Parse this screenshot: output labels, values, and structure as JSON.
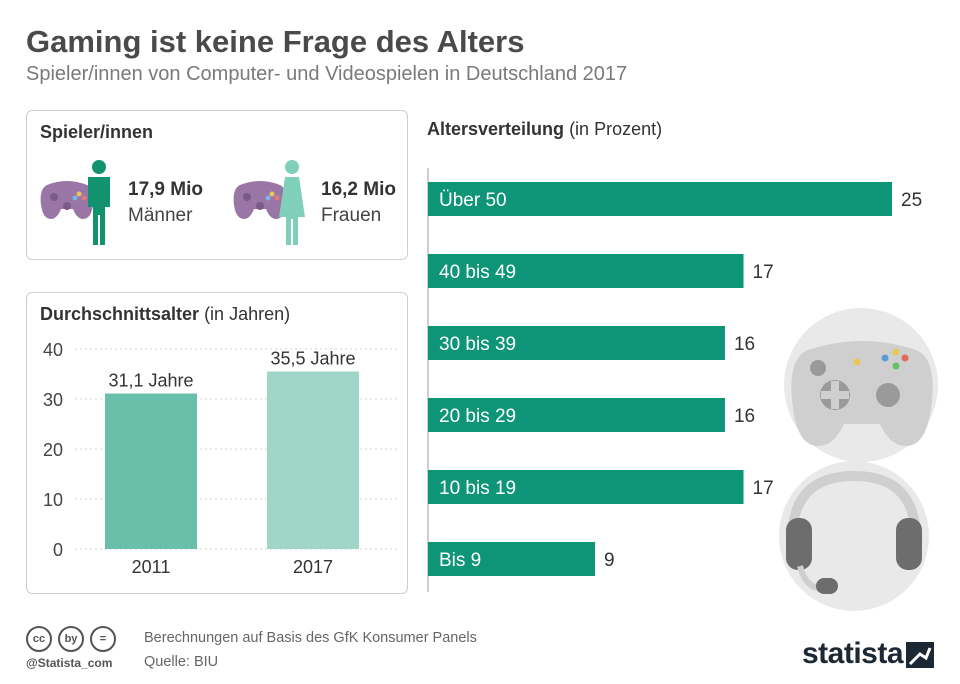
{
  "title": "Gaming ist keine Frage des Alters",
  "subtitle": "Spieler/innen von Computer- und Videospielen in Deutschland 2017",
  "players": {
    "heading": "Spieler/innen",
    "men": {
      "value": "17,9 Mio",
      "label": "Männer"
    },
    "women": {
      "value": "16,2 Mio",
      "label": "Frauen"
    }
  },
  "colors": {
    "bar_green": "#0e9577",
    "age_2011": "#6abfaa",
    "age_2017": "#9fd6c7",
    "man_icon": "#13926f",
    "woman_icon": "#7fcfbb",
    "controller_purple": "#9a76a6",
    "illustration_gray": "#e6e6e6"
  },
  "age_chart": {
    "heading": "Durchschnittsalter",
    "heading_unit": "(in Jahren)"
  },
  "dist_chart": {
    "heading": "Altersverteilung",
    "heading_unit": "(in Prozent)"
  },
  "chart_data": [
    {
      "type": "bar",
      "title": "Durchschnittsalter (in Jahren)",
      "categories": [
        "2011",
        "2017"
      ],
      "values": [
        31.1,
        35.5
      ],
      "data_labels": [
        "31,1 Jahre",
        "35,5 Jahre"
      ],
      "ylim": [
        0,
        40
      ],
      "yticks": [
        0,
        10,
        20,
        30,
        40
      ],
      "grid": true
    },
    {
      "type": "bar",
      "orientation": "horizontal",
      "title": "Altersverteilung (in Prozent)",
      "categories": [
        "Über 50",
        "40 bis 49",
        "30 bis 39",
        "20 bis 29",
        "10 bis 19",
        "Bis 9"
      ],
      "values": [
        25,
        17,
        16,
        16,
        17,
        9
      ]
    }
  ],
  "footer": {
    "source_line1": "Berechnungen auf Basis des GfK Konsumer Panels",
    "source_line2": "Quelle: BIU",
    "handle": "@Statista_com",
    "brand": "statista",
    "cc_icons": [
      "cc",
      "by",
      "="
    ]
  }
}
